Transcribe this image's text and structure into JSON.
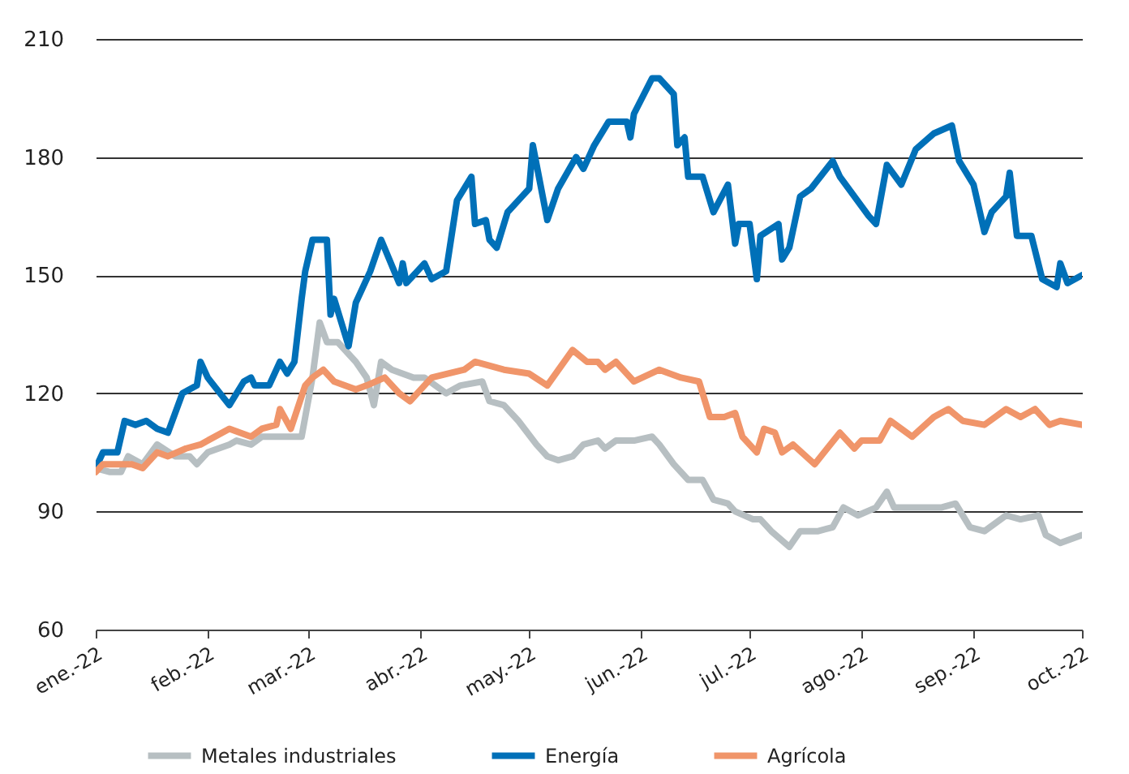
{
  "chart_data": {
    "type": "line",
    "xlim": [
      "2022-01-01",
      "2022-10-01"
    ],
    "xticks": [
      {
        "value": "2022-01-01",
        "label": "ene.-22"
      },
      {
        "value": "2022-02-01",
        "label": "feb.-22"
      },
      {
        "value": "2022-03-01",
        "label": "mar.-22"
      },
      {
        "value": "2022-04-01",
        "label": "abr.-22"
      },
      {
        "value": "2022-05-01",
        "label": "may.-22"
      },
      {
        "value": "2022-06-01",
        "label": "jun.-22"
      },
      {
        "value": "2022-07-01",
        "label": "jul.-22"
      },
      {
        "value": "2022-08-01",
        "label": "ago.-22"
      },
      {
        "value": "2022-09-01",
        "label": "sep.-22"
      },
      {
        "value": "2022-10-01",
        "label": "oct.-22"
      }
    ],
    "ylim": [
      60,
      210
    ],
    "yticks": [
      60,
      90,
      120,
      150,
      180,
      210
    ],
    "grid": "y",
    "legend": "bottom",
    "line_style": "solid",
    "marker": "none",
    "series": [
      {
        "name": "Metales industriales",
        "color": "#b7bfc2",
        "x": [
          "2022-01-01",
          "2022-01-05",
          "2022-01-08",
          "2022-01-10",
          "2022-01-14",
          "2022-01-18",
          "2022-01-23",
          "2022-01-27",
          "2022-01-29",
          "2022-02-01",
          "2022-02-07",
          "2022-02-09",
          "2022-02-13",
          "2022-02-16",
          "2022-02-20",
          "2022-02-27",
          "2022-03-02",
          "2022-03-04",
          "2022-03-06",
          "2022-03-09",
          "2022-03-14",
          "2022-03-17",
          "2022-03-19",
          "2022-03-21",
          "2022-03-24",
          "2022-03-30",
          "2022-04-02",
          "2022-04-08",
          "2022-04-12",
          "2022-04-18",
          "2022-04-20",
          "2022-04-24",
          "2022-04-28",
          "2022-05-03",
          "2022-05-06",
          "2022-05-09",
          "2022-05-13",
          "2022-05-16",
          "2022-05-20",
          "2022-05-22",
          "2022-05-25",
          "2022-05-30",
          "2022-06-04",
          "2022-06-06",
          "2022-06-10",
          "2022-06-14",
          "2022-06-18",
          "2022-06-21",
          "2022-06-25",
          "2022-06-27",
          "2022-07-02",
          "2022-07-04",
          "2022-07-07",
          "2022-07-12",
          "2022-07-15",
          "2022-07-20",
          "2022-07-24",
          "2022-07-27",
          "2022-07-31",
          "2022-08-05",
          "2022-08-08",
          "2022-08-10",
          "2022-08-16",
          "2022-08-23",
          "2022-08-27",
          "2022-08-31",
          "2022-09-04",
          "2022-09-10",
          "2022-09-14",
          "2022-09-19",
          "2022-09-21",
          "2022-09-25",
          "2022-10-01"
        ],
        "values": [
          101,
          100,
          100,
          104,
          102,
          107,
          104,
          104,
          102,
          105,
          107,
          108,
          107,
          109,
          109,
          109,
          124,
          138,
          133,
          133,
          128,
          124,
          117,
          128,
          126,
          124,
          124,
          120,
          122,
          123,
          118,
          117,
          113,
          107,
          104,
          103,
          104,
          107,
          108,
          106,
          108,
          108,
          109,
          107,
          102,
          98,
          98,
          93,
          92,
          90,
          88,
          88,
          85,
          81,
          85,
          85,
          86,
          91,
          89,
          91,
          95,
          91,
          91,
          91,
          92,
          86,
          85,
          89,
          88,
          89,
          84,
          82,
          84
        ]
      },
      {
        "name": "Energía",
        "color": "#0070b8",
        "x": [
          "2022-01-01",
          "2022-01-03",
          "2022-01-07",
          "2022-01-09",
          "2022-01-12",
          "2022-01-15",
          "2022-01-18",
          "2022-01-21",
          "2022-01-25",
          "2022-01-29",
          "2022-01-30",
          "2022-02-01",
          "2022-02-07",
          "2022-02-11",
          "2022-02-13",
          "2022-02-14",
          "2022-02-18",
          "2022-02-21",
          "2022-02-23",
          "2022-02-25",
          "2022-02-27",
          "2022-02-28",
          "2022-03-02",
          "2022-03-06",
          "2022-03-07",
          "2022-03-08",
          "2022-03-12",
          "2022-03-14",
          "2022-03-18",
          "2022-03-21",
          "2022-03-26",
          "2022-03-27",
          "2022-03-28",
          "2022-04-02",
          "2022-04-04",
          "2022-04-08",
          "2022-04-11",
          "2022-04-15",
          "2022-04-16",
          "2022-04-19",
          "2022-04-20",
          "2022-04-22",
          "2022-04-25",
          "2022-04-29",
          "2022-05-01",
          "2022-05-02",
          "2022-05-06",
          "2022-05-09",
          "2022-05-14",
          "2022-05-16",
          "2022-05-19",
          "2022-05-23",
          "2022-05-28",
          "2022-05-29",
          "2022-05-30",
          "2022-06-04",
          "2022-06-06",
          "2022-06-10",
          "2022-06-11",
          "2022-06-13",
          "2022-06-14",
          "2022-06-18",
          "2022-06-21",
          "2022-06-25",
          "2022-06-27",
          "2022-06-28",
          "2022-07-01",
          "2022-07-03",
          "2022-07-04",
          "2022-07-09",
          "2022-07-10",
          "2022-07-12",
          "2022-07-15",
          "2022-07-18",
          "2022-07-24",
          "2022-07-26",
          "2022-07-30",
          "2022-08-03",
          "2022-08-05",
          "2022-08-08",
          "2022-08-12",
          "2022-08-16",
          "2022-08-21",
          "2022-08-26",
          "2022-08-28",
          "2022-09-01",
          "2022-09-04",
          "2022-09-06",
          "2022-09-10",
          "2022-09-11",
          "2022-09-13",
          "2022-09-17",
          "2022-09-20",
          "2022-09-24",
          "2022-09-25",
          "2022-09-27",
          "2022-10-01"
        ],
        "values": [
          101,
          105,
          105,
          113,
          112,
          113,
          111,
          110,
          120,
          122,
          128,
          124,
          117,
          123,
          124,
          122,
          122,
          128,
          125,
          128,
          144,
          151,
          159,
          159,
          140,
          144,
          132,
          143,
          151,
          159,
          148,
          153,
          148,
          153,
          149,
          151,
          169,
          175,
          163,
          164,
          159,
          157,
          166,
          170,
          172,
          183,
          164,
          172,
          180,
          177,
          183,
          189,
          189,
          185,
          191,
          200,
          200,
          196,
          183,
          185,
          175,
          175,
          166,
          173,
          158,
          163,
          163,
          149,
          160,
          163,
          154,
          157,
          170,
          172,
          179,
          175,
          170,
          165,
          163,
          178,
          173,
          182,
          186,
          188,
          179,
          173,
          161,
          166,
          170,
          176,
          160,
          160,
          149,
          147,
          153,
          148,
          150
        ]
      },
      {
        "name": "Agrícola",
        "color": "#f0956a",
        "x": [
          "2022-01-01",
          "2022-01-03",
          "2022-01-08",
          "2022-01-11",
          "2022-01-14",
          "2022-01-18",
          "2022-01-21",
          "2022-01-26",
          "2022-01-30",
          "2022-02-07",
          "2022-02-13",
          "2022-02-16",
          "2022-02-20",
          "2022-02-21",
          "2022-02-24",
          "2022-02-28",
          "2022-03-02",
          "2022-03-05",
          "2022-03-08",
          "2022-03-14",
          "2022-03-17",
          "2022-03-22",
          "2022-03-26",
          "2022-03-29",
          "2022-04-04",
          "2022-04-13",
          "2022-04-16",
          "2022-04-24",
          "2022-05-01",
          "2022-05-06",
          "2022-05-13",
          "2022-05-17",
          "2022-05-20",
          "2022-05-22",
          "2022-05-25",
          "2022-05-30",
          "2022-06-06",
          "2022-06-12",
          "2022-06-17",
          "2022-06-20",
          "2022-06-24",
          "2022-06-27",
          "2022-06-29",
          "2022-07-03",
          "2022-07-05",
          "2022-07-08",
          "2022-07-10",
          "2022-07-13",
          "2022-07-19",
          "2022-07-26",
          "2022-07-30",
          "2022-08-01",
          "2022-08-06",
          "2022-08-09",
          "2022-08-15",
          "2022-08-21",
          "2022-08-25",
          "2022-08-29",
          "2022-09-04",
          "2022-09-10",
          "2022-09-14",
          "2022-09-18",
          "2022-09-22",
          "2022-09-25",
          "2022-10-01"
        ],
        "values": [
          100,
          102,
          102,
          102,
          101,
          105,
          104,
          106,
          107,
          111,
          109,
          111,
          112,
          116,
          111,
          122,
          124,
          126,
          123,
          121,
          122,
          124,
          120,
          118,
          124,
          126,
          128,
          126,
          125,
          122,
          131,
          128,
          128,
          126,
          128,
          123,
          126,
          124,
          123,
          114,
          114,
          115,
          109,
          105,
          111,
          110,
          105,
          107,
          102,
          110,
          106,
          108,
          108,
          113,
          109,
          114,
          116,
          113,
          112,
          116,
          114,
          116,
          112,
          113,
          112
        ]
      }
    ]
  }
}
